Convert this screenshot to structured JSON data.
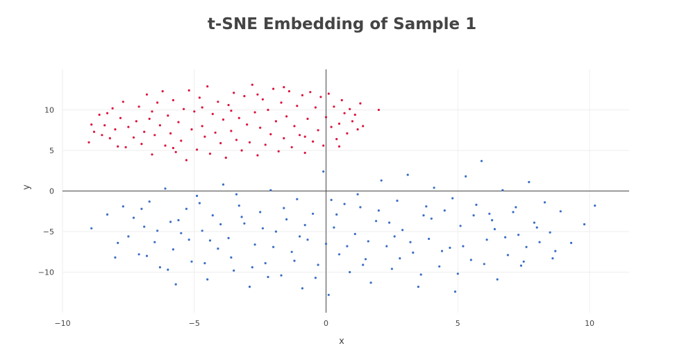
{
  "chart_data": {
    "type": "scatter",
    "title": "t-SNE Embedding of Sample 1",
    "xlabel": "x",
    "ylabel": "y",
    "xlim": [
      -10,
      11.5
    ],
    "ylim": [
      -15,
      15
    ],
    "xticks": [
      -10,
      -5,
      0,
      5,
      10
    ],
    "xtick_labels": [
      "−10",
      "−5",
      "0",
      "5",
      "10"
    ],
    "yticks": [
      -10,
      -5,
      0,
      5,
      10
    ],
    "ytick_labels": [
      "−10",
      "−5",
      "0",
      "5",
      "10"
    ],
    "grid": true,
    "zero_lines": true,
    "legend": "none",
    "series": [
      {
        "color": "#dc143c",
        "points": [
          [
            -9.0,
            6.0
          ],
          [
            -8.9,
            8.2
          ],
          [
            -8.8,
            7.3
          ],
          [
            -8.6,
            9.4
          ],
          [
            -8.4,
            8.1
          ],
          [
            -8.3,
            9.6
          ],
          [
            -8.2,
            6.5
          ],
          [
            -8.1,
            10.2
          ],
          [
            -8.0,
            7.6
          ],
          [
            -7.9,
            5.5
          ],
          [
            -7.8,
            9.0
          ],
          [
            -7.6,
            5.4
          ],
          [
            -7.5,
            7.9
          ],
          [
            -7.3,
            6.6
          ],
          [
            -7.2,
            8.6
          ],
          [
            -7.1,
            10.4
          ],
          [
            -7.0,
            5.8
          ],
          [
            -6.9,
            7.3
          ],
          [
            -6.8,
            11.9
          ],
          [
            -6.7,
            8.9
          ],
          [
            -6.6,
            4.5
          ],
          [
            -6.5,
            6.9
          ],
          [
            -6.4,
            10.9
          ],
          [
            -6.3,
            8.1
          ],
          [
            -6.2,
            12.3
          ],
          [
            -6.1,
            5.6
          ],
          [
            -6.0,
            9.3
          ],
          [
            -5.9,
            7.1
          ],
          [
            -5.8,
            11.2
          ],
          [
            -5.7,
            4.8
          ],
          [
            -5.6,
            8.5
          ],
          [
            -5.5,
            6.2
          ],
          [
            -5.4,
            10.1
          ],
          [
            -5.3,
            3.8
          ],
          [
            -5.2,
            12.4
          ],
          [
            -5.1,
            7.6
          ],
          [
            -5.0,
            9.8
          ],
          [
            -4.9,
            5.1
          ],
          [
            -4.8,
            11.5
          ],
          [
            -4.7,
            8.0
          ],
          [
            -4.6,
            6.7
          ],
          [
            -4.5,
            12.9
          ],
          [
            -4.4,
            4.6
          ],
          [
            -4.3,
            9.5
          ],
          [
            -4.2,
            7.2
          ],
          [
            -4.1,
            11.0
          ],
          [
            -4.0,
            5.9
          ],
          [
            -3.9,
            8.8
          ],
          [
            -3.8,
            4.1
          ],
          [
            -3.7,
            10.6
          ],
          [
            -3.6,
            7.4
          ],
          [
            -3.5,
            12.1
          ],
          [
            -3.4,
            6.3
          ],
          [
            -3.3,
            9.0
          ],
          [
            -3.2,
            5.0
          ],
          [
            -3.1,
            11.7
          ],
          [
            -3.0,
            8.2
          ],
          [
            -2.9,
            6.0
          ],
          [
            -2.8,
            13.1
          ],
          [
            -2.7,
            9.7
          ],
          [
            -2.6,
            4.4
          ],
          [
            -2.5,
            7.8
          ],
          [
            -2.4,
            11.3
          ],
          [
            -2.3,
            5.7
          ],
          [
            -2.2,
            10.0
          ],
          [
            -2.1,
            7.0
          ],
          [
            -2.0,
            12.6
          ],
          [
            -1.9,
            8.6
          ],
          [
            -1.8,
            4.9
          ],
          [
            -1.7,
            10.9
          ],
          [
            -1.6,
            6.5
          ],
          [
            -1.5,
            9.2
          ],
          [
            -1.4,
            12.3
          ],
          [
            -1.3,
            5.4
          ],
          [
            -1.2,
            8.0
          ],
          [
            -1.1,
            10.5
          ],
          [
            -1.0,
            6.9
          ],
          [
            -0.9,
            11.8
          ],
          [
            -0.8,
            4.7
          ],
          [
            -0.7,
            8.9
          ],
          [
            -0.6,
            12.2
          ],
          [
            -0.5,
            6.1
          ],
          [
            -0.4,
            10.3
          ],
          [
            -0.3,
            7.5
          ],
          [
            -0.2,
            11.6
          ],
          [
            -0.1,
            5.6
          ],
          [
            0.0,
            9.1
          ],
          [
            0.1,
            12.0
          ],
          [
            0.2,
            7.9
          ],
          [
            0.3,
            10.4
          ],
          [
            0.4,
            6.4
          ],
          [
            0.5,
            8.3
          ],
          [
            0.6,
            11.2
          ],
          [
            0.7,
            9.6
          ],
          [
            0.8,
            7.1
          ],
          [
            0.9,
            10.1
          ],
          [
            1.0,
            8.6
          ],
          [
            1.1,
            9.4
          ],
          [
            1.2,
            7.6
          ],
          [
            1.3,
            10.8
          ],
          [
            1.4,
            8.0
          ],
          [
            2.0,
            10.0
          ],
          [
            -6.6,
            9.8
          ],
          [
            -5.8,
            5.3
          ],
          [
            -4.7,
            10.3
          ],
          [
            -3.6,
            9.9
          ],
          [
            -2.6,
            11.9
          ],
          [
            -1.6,
            12.8
          ],
          [
            -0.8,
            6.7
          ],
          [
            0.5,
            5.5
          ],
          [
            -7.7,
            11.0
          ],
          [
            -8.5,
            6.9
          ]
        ]
      },
      {
        "color": "#3a6ec4",
        "points": [
          [
            -8.9,
            -4.6
          ],
          [
            -8.3,
            -2.9
          ],
          [
            -8.0,
            -8.2
          ],
          [
            -7.7,
            -1.9
          ],
          [
            -7.5,
            -5.6
          ],
          [
            -7.3,
            -3.3
          ],
          [
            -7.1,
            -7.8
          ],
          [
            -6.9,
            -4.4
          ],
          [
            -6.7,
            -1.3
          ],
          [
            -6.5,
            -6.3
          ],
          [
            -6.3,
            -9.4
          ],
          [
            -6.1,
            0.3
          ],
          [
            -5.9,
            -3.8
          ],
          [
            -5.7,
            -11.5
          ],
          [
            -5.5,
            -5.2
          ],
          [
            -5.3,
            -2.2
          ],
          [
            -5.1,
            -8.7
          ],
          [
            -4.9,
            -0.6
          ],
          [
            -4.7,
            -4.9
          ],
          [
            -4.5,
            -10.9
          ],
          [
            -4.3,
            -3.0
          ],
          [
            -4.1,
            -7.1
          ],
          [
            -3.9,
            0.8
          ],
          [
            -3.7,
            -5.8
          ],
          [
            -3.5,
            -9.8
          ],
          [
            -3.3,
            -1.8
          ],
          [
            -3.1,
            -4.0
          ],
          [
            -2.9,
            -11.8
          ],
          [
            -2.7,
            -6.6
          ],
          [
            -2.5,
            -2.6
          ],
          [
            -2.3,
            -8.9
          ],
          [
            -2.1,
            0.1
          ],
          [
            -1.9,
            -5.0
          ],
          [
            -1.7,
            -10.4
          ],
          [
            -1.5,
            -3.5
          ],
          [
            -1.3,
            -7.5
          ],
          [
            -1.1,
            -1.0
          ],
          [
            -0.9,
            -12.0
          ],
          [
            -0.7,
            -6.0
          ],
          [
            -0.5,
            -2.8
          ],
          [
            -0.3,
            -9.1
          ],
          [
            -0.1,
            2.4
          ],
          [
            0.1,
            -12.8
          ],
          [
            0.3,
            -4.5
          ],
          [
            0.5,
            -7.8
          ],
          [
            0.7,
            -1.6
          ],
          [
            0.9,
            -10.0
          ],
          [
            1.1,
            -5.3
          ],
          [
            1.3,
            -2.0
          ],
          [
            1.5,
            -8.4
          ],
          [
            1.7,
            -11.3
          ],
          [
            1.9,
            -3.7
          ],
          [
            2.1,
            1.3
          ],
          [
            2.3,
            -6.8
          ],
          [
            2.5,
            -9.6
          ],
          [
            2.7,
            -1.2
          ],
          [
            2.9,
            -4.8
          ],
          [
            3.1,
            2.0
          ],
          [
            3.3,
            -7.6
          ],
          [
            3.5,
            -11.8
          ],
          [
            3.7,
            -3.0
          ],
          [
            3.9,
            -5.9
          ],
          [
            4.1,
            0.4
          ],
          [
            4.3,
            -9.3
          ],
          [
            4.5,
            -2.4
          ],
          [
            4.7,
            -7.0
          ],
          [
            4.9,
            -12.4
          ],
          [
            5.1,
            -4.3
          ],
          [
            5.3,
            1.8
          ],
          [
            5.5,
            -8.5
          ],
          [
            5.7,
            -1.7
          ],
          [
            5.9,
            3.7
          ],
          [
            6.1,
            -6.0
          ],
          [
            6.3,
            -3.6
          ],
          [
            6.5,
            -10.9
          ],
          [
            6.7,
            0.1
          ],
          [
            6.9,
            -7.9
          ],
          [
            7.1,
            -2.6
          ],
          [
            7.3,
            -5.4
          ],
          [
            7.5,
            -8.7
          ],
          [
            7.7,
            1.1
          ],
          [
            7.9,
            -3.9
          ],
          [
            8.1,
            -6.3
          ],
          [
            8.3,
            -1.4
          ],
          [
            8.5,
            -5.1
          ],
          [
            8.7,
            -7.4
          ],
          [
            8.9,
            -2.5
          ],
          [
            9.3,
            -6.4
          ],
          [
            9.8,
            -4.1
          ],
          [
            10.2,
            -1.8
          ],
          [
            -7.9,
            -6.4
          ],
          [
            -6.8,
            -8.0
          ],
          [
            -5.6,
            -3.6
          ],
          [
            -4.4,
            -6.1
          ],
          [
            -3.2,
            -3.2
          ],
          [
            -2.0,
            -6.9
          ],
          [
            -0.8,
            -4.2
          ],
          [
            0.4,
            -2.9
          ],
          [
            1.6,
            -6.2
          ],
          [
            2.8,
            -8.3
          ],
          [
            4.0,
            -3.4
          ],
          [
            5.2,
            -6.8
          ],
          [
            6.4,
            -4.7
          ],
          [
            7.6,
            -6.9
          ],
          [
            -6.0,
            -9.7
          ],
          [
            -4.8,
            -1.5
          ],
          [
            -3.6,
            -8.2
          ],
          [
            -2.4,
            -4.6
          ],
          [
            -1.2,
            -8.6
          ],
          [
            0.0,
            -6.5
          ],
          [
            1.2,
            -0.4
          ],
          [
            2.4,
            -3.9
          ],
          [
            3.6,
            -10.3
          ],
          [
            4.8,
            -0.9
          ],
          [
            6.0,
            -9.0
          ],
          [
            7.2,
            -2.0
          ],
          [
            -7.0,
            -2.2
          ],
          [
            -5.8,
            -7.2
          ],
          [
            -4.6,
            -8.9
          ],
          [
            -3.4,
            -0.4
          ],
          [
            -2.2,
            -10.6
          ],
          [
            -1.0,
            -5.6
          ],
          [
            0.2,
            -1.1
          ],
          [
            1.4,
            -9.1
          ],
          [
            2.6,
            -5.6
          ],
          [
            3.8,
            -1.9
          ],
          [
            5.0,
            -10.2
          ],
          [
            6.2,
            -2.8
          ],
          [
            7.4,
            -9.2
          ],
          [
            8.6,
            -8.3
          ],
          [
            -6.4,
            -4.9
          ],
          [
            -5.2,
            -6.0
          ],
          [
            -4.0,
            -4.1
          ],
          [
            -2.8,
            -9.4
          ],
          [
            -1.6,
            -2.1
          ],
          [
            -0.4,
            -10.7
          ],
          [
            0.8,
            -6.8
          ],
          [
            2.0,
            -2.4
          ],
          [
            3.2,
            -6.3
          ],
          [
            4.4,
            -7.4
          ],
          [
            5.6,
            -3.0
          ],
          [
            6.8,
            -5.7
          ],
          [
            8.0,
            -4.5
          ]
        ]
      }
    ]
  }
}
